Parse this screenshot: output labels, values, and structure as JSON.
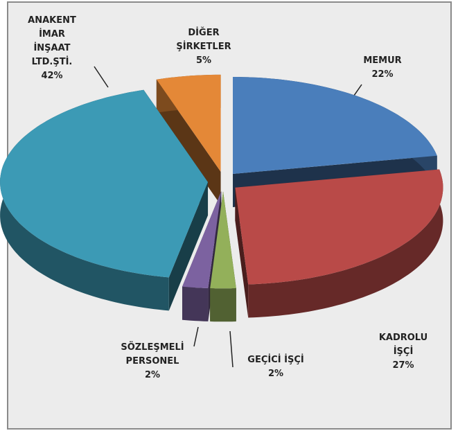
{
  "chart_data": {
    "type": "pie3d",
    "categories": [
      "MEMUR",
      "KADROLU İŞÇİ",
      "GEÇİCİ İŞÇİ",
      "SÖZLEŞMELİ PERSONEL",
      "ANAKENT İMAR İNŞAAT LTD.ŞTİ.",
      "DİĞER ŞİRKETLER"
    ],
    "values": [
      22,
      27,
      2,
      2,
      42,
      5
    ],
    "value_labels": [
      "22%",
      "27%",
      "2%",
      "2%",
      "42%",
      "5%"
    ],
    "colors": [
      "#4a7ebb",
      "#b94a48",
      "#93b05a",
      "#7c62a0",
      "#3c9ab5",
      "#e48837"
    ]
  }
}
